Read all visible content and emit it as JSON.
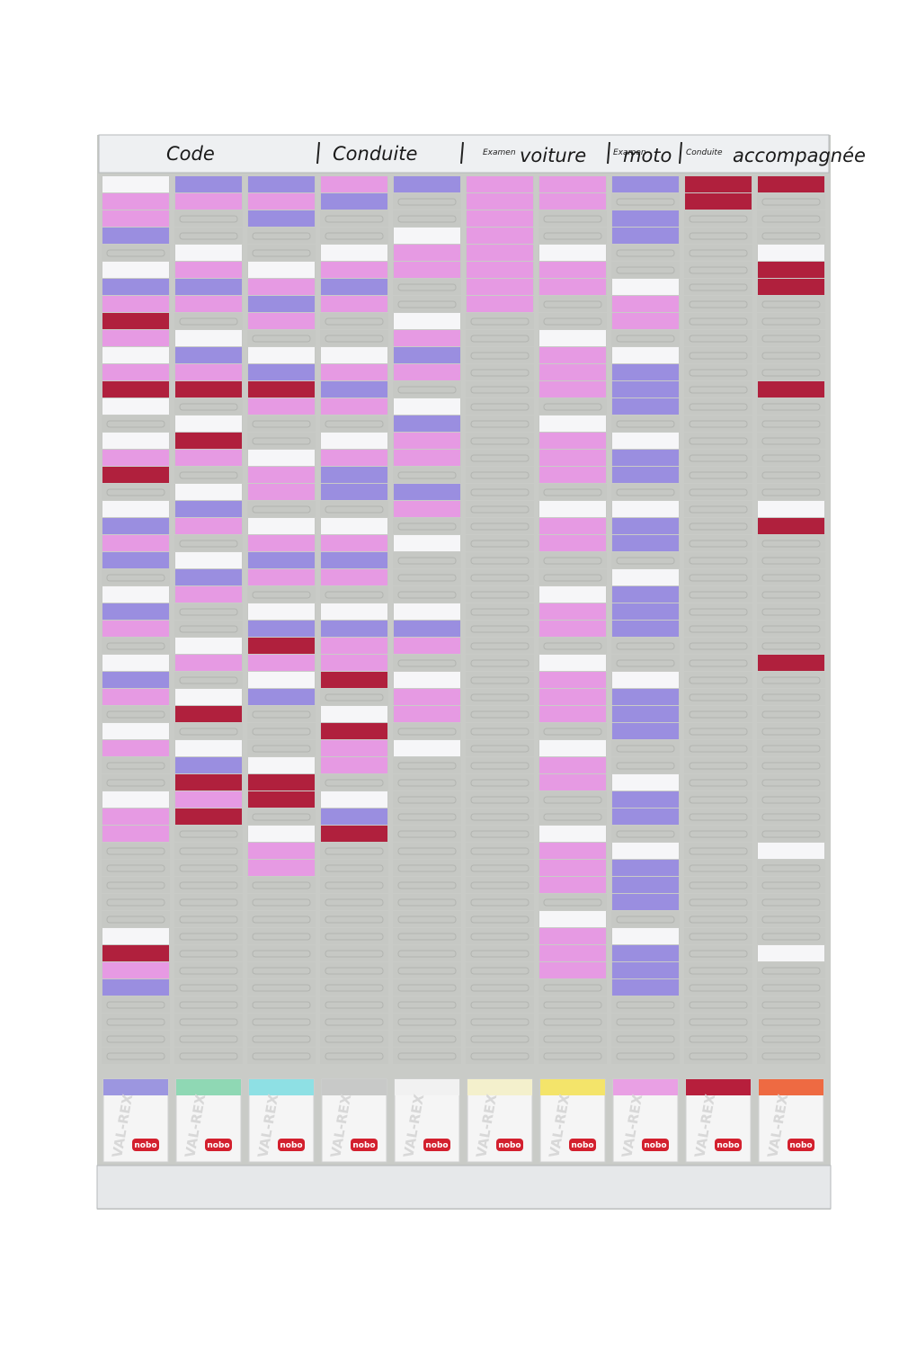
{
  "header": {
    "labels": [
      {
        "text": "Code"
      },
      {
        "text": "Conduite"
      },
      {
        "small": "Examen",
        "text": "voiture"
      },
      {
        "small": "Examen",
        "text": "moto"
      },
      {
        "small": "Conduite",
        "text": "accompagnée"
      }
    ]
  },
  "card_boxes": [
    {
      "brand": "VAL-REX",
      "logo": "nobo"
    },
    {
      "brand": "VAL-REX",
      "logo": "nobo"
    },
    {
      "brand": "VAL-REX",
      "logo": "nobo"
    },
    {
      "brand": "VAL-REX",
      "logo": "nobo"
    },
    {
      "brand": "VAL-REX",
      "logo": "nobo"
    },
    {
      "brand": "VAL-REX",
      "logo": "nobo"
    },
    {
      "brand": "VAL-REX",
      "logo": "nobo"
    },
    {
      "brand": "VAL-REX",
      "logo": "nobo"
    },
    {
      "brand": "VAL-REX",
      "logo": "nobo"
    },
    {
      "brand": "VAL-REX",
      "logo": "nobo"
    }
  ]
}
